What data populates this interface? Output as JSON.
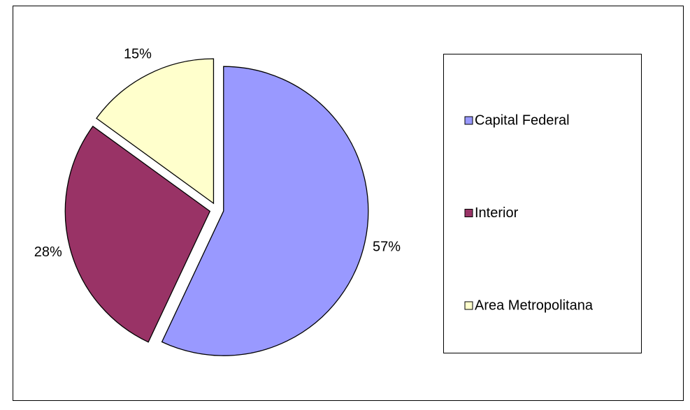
{
  "chart_data": {
    "type": "pie",
    "categories": [
      "Capital Federal",
      "Interior",
      "Area Metropolitana"
    ],
    "values": [
      57,
      28,
      15
    ],
    "value_labels": [
      "57%",
      "28%",
      "15%"
    ],
    "colors": [
      "#9999ff",
      "#993366",
      "#ffffcc"
    ],
    "legend": "right"
  }
}
